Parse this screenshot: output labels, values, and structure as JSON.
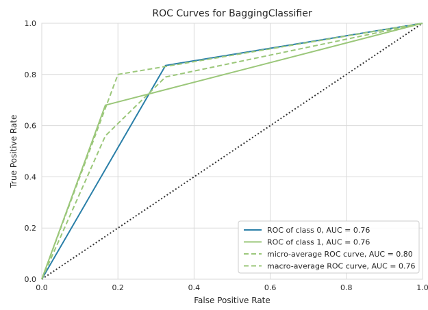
{
  "chart_data": {
    "type": "line",
    "title": "ROC Curves for BaggingClassifier",
    "xlabel": "False Positive Rate",
    "ylabel": "True Positive Rate",
    "xlim": [
      0.0,
      1.0
    ],
    "ylim": [
      0.0,
      1.0
    ],
    "x_ticks": [
      "0.0",
      "0.2",
      "0.4",
      "0.6",
      "0.8",
      "1.0"
    ],
    "y_ticks": [
      "0.0",
      "0.2",
      "0.4",
      "0.6",
      "0.8",
      "1.0"
    ],
    "grid": true,
    "legend_position": "lower-right",
    "series": [
      {
        "name": "ROC of class 0, AUC = 0.76",
        "color": "#2a7fa8",
        "dash": "solid",
        "x": [
          0.0,
          0.325,
          1.0
        ],
        "y": [
          0.0,
          0.835,
          1.0
        ]
      },
      {
        "name": "ROC of class 1, AUC = 0.76",
        "color": "#9bc77a",
        "dash": "solid",
        "x": [
          0.0,
          0.167,
          1.0
        ],
        "y": [
          0.0,
          0.68,
          1.0
        ]
      },
      {
        "name": "micro-average ROC curve, AUC = 0.80",
        "color": "#9bc77a",
        "dash": "dashed",
        "x": [
          0.0,
          0.2,
          1.0
        ],
        "y": [
          0.0,
          0.8,
          1.0
        ]
      },
      {
        "name": "macro-average ROC curve, AUC = 0.76",
        "color": "#9bc77a",
        "dash": "dashed",
        "x": [
          0.0,
          0.167,
          0.325,
          1.0
        ],
        "y": [
          0.0,
          0.56,
          0.79,
          1.0
        ]
      }
    ],
    "reference_line": {
      "color": "#333333",
      "dash": "dotted",
      "x": [
        0.0,
        1.0
      ],
      "y": [
        0.0,
        1.0
      ]
    }
  }
}
